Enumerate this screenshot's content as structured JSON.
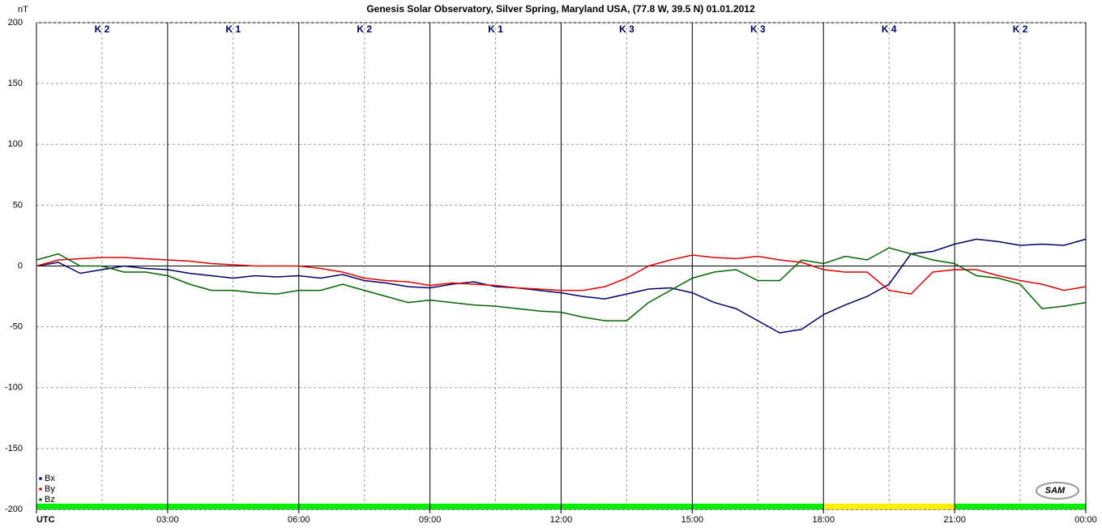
{
  "chart_data": {
    "type": "line",
    "title": "Genesis Solar Observatory, Silver Spring, Maryland USA, (77.8 W, 39.5 N)  01.01.2012",
    "ylabel": "nT",
    "x": [
      0,
      0.5,
      1,
      1.5,
      2,
      2.5,
      3,
      3.5,
      4,
      4.5,
      5,
      5.5,
      6,
      6.5,
      7,
      7.5,
      8,
      8.5,
      9,
      9.5,
      10,
      10.5,
      11,
      11.5,
      12,
      12.5,
      13,
      13.5,
      14,
      14.5,
      15,
      15.5,
      16,
      16.5,
      17,
      17.5,
      18,
      18.5,
      19,
      19.5,
      20,
      20.5,
      21,
      21.5,
      22,
      22.5,
      23,
      23.5,
      24
    ],
    "series": [
      {
        "name": "Bx",
        "color": "#000066",
        "values": [
          0,
          3,
          -6,
          -3,
          0,
          -2,
          -3,
          -6,
          -8,
          -10,
          -8,
          -9,
          -8,
          -10,
          -7,
          -12,
          -14,
          -17,
          -18,
          -15,
          -13,
          -17,
          -18,
          -20,
          -22,
          -25,
          -27,
          -23,
          -19,
          -18,
          -22,
          -30,
          -35,
          -45,
          -55,
          -52,
          -40,
          -32,
          -25,
          -15,
          10,
          12,
          18,
          22,
          20,
          17,
          18,
          17,
          22
        ]
      },
      {
        "name": "By",
        "color": "#e00000",
        "values": [
          0,
          5,
          6,
          7,
          7,
          6,
          5,
          4,
          2,
          1,
          0,
          0,
          0,
          -2,
          -5,
          -10,
          -12,
          -13,
          -16,
          -14,
          -15,
          -16,
          -18,
          -19,
          -20,
          -20,
          -17,
          -10,
          0,
          5,
          9,
          7,
          6,
          8,
          5,
          3,
          -3,
          -5,
          -5,
          -20,
          -23,
          -5,
          -3,
          -3,
          -8,
          -12,
          -15,
          -20,
          -17
        ]
      },
      {
        "name": "Bz",
        "color": "#006600",
        "values": [
          5,
          10,
          0,
          0,
          -5,
          -5,
          -8,
          -15,
          -20,
          -20,
          -22,
          -23,
          -20,
          -20,
          -15,
          -20,
          -25,
          -30,
          -28,
          -30,
          -32,
          -33,
          -35,
          -37,
          -38,
          -42,
          -45,
          -45,
          -30,
          -20,
          -10,
          -5,
          -3,
          -12,
          -12,
          5,
          2,
          8,
          5,
          15,
          10,
          5,
          2,
          -8,
          -10,
          -15,
          -35,
          -33,
          -30
        ]
      }
    ],
    "xlim": [
      0,
      24
    ],
    "xticks": [
      {
        "value": 0,
        "label": "UTC"
      },
      {
        "value": 3,
        "label": "03:00"
      },
      {
        "value": 6,
        "label": "06:00"
      },
      {
        "value": 9,
        "label": "09:00"
      },
      {
        "value": 12,
        "label": "12:00"
      },
      {
        "value": 15,
        "label": "15:00"
      },
      {
        "value": 18,
        "label": "18:00"
      },
      {
        "value": 21,
        "label": "21:00"
      },
      {
        "value": 24,
        "label": "00:00"
      }
    ],
    "xminor_ticks": [
      1.5,
      4.5,
      7.5,
      10.5,
      13.5,
      16.5,
      19.5,
      22.5
    ],
    "ylim": [
      -200,
      200
    ],
    "yticks": [
      200,
      150,
      100,
      50,
      0,
      -50,
      -100,
      -150,
      -200
    ],
    "grid": true,
    "legend": "bottom-left",
    "k_index": {
      "labels": [
        "K 2",
        "K 1",
        "K 2",
        "K 1",
        "K 3",
        "K 3",
        "K 4",
        "K 2"
      ],
      "colors": [
        "#00ee00",
        "#00ee00",
        "#00ee00",
        "#00ee00",
        "#00ee00",
        "#00ee00",
        "#ffee00",
        "#00ee00"
      ]
    },
    "logo": "SAM"
  }
}
